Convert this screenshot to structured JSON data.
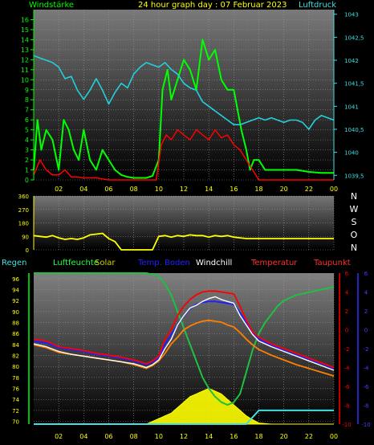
{
  "header": {
    "left_label": "Windstärke",
    "title": "24 hour graph day : 07 Februar 2023",
    "right_label": "Luftdruck"
  },
  "colors": {
    "wind_green": "#00ff00",
    "pressure_cyan": "#22d0dd",
    "pressure_axis": "#40e0e0",
    "red": "#ff0000",
    "yellow": "#ffff00",
    "white": "#ffffff",
    "blue": "#2020ff",
    "orange": "#ff8000",
    "grid": "#9a9a9a"
  },
  "chart_data": [
    {
      "id": "wind_pressure",
      "type": "line",
      "x_ticks": [
        "02",
        "04",
        "06",
        "08",
        "10",
        "12",
        "14",
        "16",
        "18",
        "20",
        "22",
        "00"
      ],
      "left_axis": {
        "label": "Windstärke",
        "ticks": [
          "0",
          "1",
          "2",
          "3",
          "4",
          "5",
          "6",
          "7",
          "8",
          "9",
          "10",
          "11",
          "12",
          "13",
          "14",
          "15",
          "16"
        ],
        "ylim": [
          0,
          17
        ]
      },
      "right_axis": {
        "label": "Luftdruck",
        "ticks": [
          "1039,5",
          "1040",
          "1040,5",
          "1041",
          "1041,5",
          "1042",
          "1042,5",
          "1043"
        ],
        "ylim": [
          1039.4,
          1043.1
        ]
      },
      "series": [
        {
          "axis": "left",
          "color": "#00ff00",
          "x": [
            0,
            0.3,
            0.6,
            1,
            1.5,
            2,
            2.4,
            2.8,
            3.2,
            3.6,
            4,
            4.5,
            5,
            5.5,
            6,
            6.5,
            7,
            7.5,
            8,
            8.5,
            9,
            9.5,
            10,
            10.3,
            10.7,
            11,
            11.5,
            12,
            12.5,
            13,
            13.5,
            14,
            14.5,
            15,
            15.5,
            16,
            16.3,
            16.6,
            17,
            17.3,
            17.6,
            18,
            18.5,
            19,
            20,
            21,
            22,
            23,
            24
          ],
          "y": [
            1,
            6,
            3,
            5,
            4,
            1,
            6,
            5,
            3,
            2,
            5,
            2,
            1,
            3,
            2,
            1,
            0.5,
            0.3,
            0.2,
            0.2,
            0.2,
            0.4,
            2,
            9,
            11,
            8,
            10,
            12,
            11,
            9,
            14,
            12,
            13,
            10,
            9,
            9,
            7,
            5,
            3,
            1,
            2,
            2,
            1,
            1,
            1,
            1,
            0.8,
            0.7,
            0.7
          ]
        },
        {
          "axis": "left",
          "color": "#ff0000",
          "x": [
            0,
            0.5,
            1,
            1.5,
            2,
            2.5,
            3,
            3.5,
            4,
            5,
            6,
            7,
            8,
            9,
            9.8,
            10.2,
            10.6,
            11,
            11.5,
            12,
            12.5,
            13,
            13.5,
            14,
            14.5,
            15,
            15.5,
            16,
            16.5,
            17,
            17.5,
            18,
            20,
            22,
            24
          ],
          "y": [
            0.5,
            2,
            1,
            0.5,
            0.5,
            1,
            0.3,
            0.3,
            0.2,
            0.2,
            0,
            0,
            0,
            0,
            0,
            3.5,
            4.5,
            4,
            5,
            4.5,
            4,
            5,
            4.5,
            4,
            5,
            4.2,
            4.5,
            3.5,
            3,
            2,
            1,
            0,
            0,
            0,
            0
          ]
        },
        {
          "axis": "right",
          "color": "#22d0dd",
          "x": [
            0,
            0.5,
            1,
            1.5,
            2,
            2.5,
            3,
            3.5,
            4,
            4.5,
            5,
            5.5,
            6,
            6.5,
            7,
            7.5,
            8,
            8.5,
            9,
            9.5,
            10,
            10.5,
            11,
            11.5,
            12,
            12.5,
            13,
            13.5,
            14,
            14.5,
            15,
            15.5,
            16,
            16.5,
            17,
            17.5,
            18,
            18.5,
            19,
            19.5,
            20,
            20.5,
            21,
            21.5,
            22,
            22.5,
            23,
            23.5,
            24
          ],
          "y": [
            1042.1,
            1042.05,
            1042.0,
            1041.95,
            1041.85,
            1041.6,
            1041.65,
            1041.35,
            1041.15,
            1041.35,
            1041.6,
            1041.35,
            1041.05,
            1041.3,
            1041.5,
            1041.4,
            1041.7,
            1041.85,
            1041.95,
            1041.9,
            1041.85,
            1041.95,
            1041.8,
            1041.7,
            1041.5,
            1041.4,
            1041.35,
            1041.1,
            1041.0,
            1040.9,
            1040.8,
            1040.7,
            1040.6,
            1040.6,
            1040.65,
            1040.7,
            1040.75,
            1040.7,
            1040.75,
            1040.7,
            1040.65,
            1040.7,
            1040.7,
            1040.65,
            1040.5,
            1040.7,
            1040.8,
            1040.75,
            1040.7
          ]
        }
      ]
    },
    {
      "id": "wind_direction",
      "type": "line",
      "x_ticks": [
        "02",
        "04",
        "06",
        "08",
        "10",
        "12",
        "14",
        "16",
        "18",
        "20",
        "22",
        "00"
      ],
      "left_axis": {
        "ticks": [
          "0",
          "90",
          "180",
          "270",
          "360"
        ],
        "ylim": [
          0,
          360
        ]
      },
      "right_axis": {
        "ticks": [
          "N",
          "W",
          "S",
          "O",
          "N"
        ]
      },
      "series": [
        {
          "color": "#ffff00",
          "x": [
            0,
            0.5,
            1,
            1.5,
            2,
            2.5,
            3,
            3.5,
            4,
            4.5,
            5,
            5.5,
            6,
            6.5,
            7,
            8,
            9,
            9.5,
            10,
            10.5,
            11,
            11.5,
            12,
            12.5,
            13,
            13.5,
            14,
            14.5,
            15,
            15.5,
            16,
            16.5,
            17,
            18,
            20,
            22,
            24
          ],
          "y": [
            95,
            90,
            85,
            95,
            80,
            70,
            75,
            70,
            80,
            100,
            105,
            110,
            75,
            55,
            0,
            0,
            0,
            0,
            90,
            95,
            85,
            95,
            90,
            100,
            95,
            95,
            85,
            95,
            90,
            95,
            85,
            80,
            75,
            75,
            75,
            75,
            75
          ]
        }
      ]
    },
    {
      "id": "temperature",
      "type": "line",
      "x_ticks": [
        "02",
        "04",
        "06",
        "08",
        "10",
        "12",
        "14",
        "16",
        "18",
        "20",
        "22",
        "00"
      ],
      "legend": [
        "Regen",
        "Luftfeuchte",
        "Solar",
        "Temp. Boden",
        "Windchill",
        "Temperatur",
        "Taupunkt"
      ],
      "left_axis": {
        "ticks": [
          "70",
          "72",
          "74",
          "76",
          "78",
          "80",
          "82",
          "84",
          "86",
          "88",
          "90",
          "92",
          "94",
          "96"
        ],
        "ylim": [
          69.5,
          97
        ]
      },
      "right_axis": {
        "ticks": [
          "-10",
          "-8",
          "-6",
          "-4",
          "-2",
          "0",
          "2",
          "4",
          "6"
        ],
        "ylim": [
          -10,
          6
        ]
      },
      "series": [
        {
          "name": "Temperatur",
          "color": "#ff0000",
          "x": [
            0,
            1,
            2,
            3,
            4,
            5,
            6,
            7,
            8,
            8.5,
            9,
            9.5,
            10,
            10.5,
            11,
            11.5,
            12,
            12.5,
            13,
            13.5,
            14,
            14.5,
            15,
            15.5,
            16,
            16.5,
            17,
            17.5,
            18,
            19,
            20,
            21,
            22,
            23,
            24
          ],
          "y": [
            -1,
            -1.2,
            -1.8,
            -2,
            -2.2,
            -2.5,
            -2.7,
            -2.9,
            -3.2,
            -3.4,
            -3.6,
            -3.3,
            -2.8,
            -1,
            0,
            1.5,
            2.5,
            3.2,
            3.7,
            4,
            4.1,
            4.1,
            4.0,
            3.9,
            3.8,
            2.5,
            1,
            -0.2,
            -0.8,
            -1.5,
            -2,
            -2.5,
            -3,
            -3.5,
            -4
          ]
        },
        {
          "name": "Windchill",
          "color": "#ffffff",
          "x": [
            0,
            1,
            2,
            3,
            4,
            5,
            6,
            7,
            8,
            8.5,
            9,
            9.5,
            10,
            10.5,
            11,
            11.5,
            12,
            12.5,
            13,
            13.5,
            14,
            14.5,
            15,
            15.5,
            16,
            16.5,
            17,
            17.5,
            18,
            19,
            20,
            21,
            22,
            23,
            24
          ],
          "y": [
            -1.5,
            -1.8,
            -2.3,
            -2.6,
            -2.8,
            -3,
            -3.2,
            -3.4,
            -3.6,
            -3.8,
            -4,
            -3.7,
            -3.2,
            -2,
            -1,
            0.5,
            1.5,
            2.3,
            2.6,
            3,
            3.3,
            3.5,
            3.2,
            3,
            2.8,
            1.5,
            0.5,
            -0.5,
            -1.2,
            -1.8,
            -2.3,
            -2.8,
            -3.3,
            -3.8,
            -4.3
          ]
        },
        {
          "name": "Temp. Boden",
          "color": "#2020ff",
          "x": [
            0,
            1,
            2,
            3,
            4,
            5,
            6,
            7,
            8,
            8.5,
            9,
            9.5,
            10,
            10.5,
            11,
            11.5,
            12,
            12.5,
            13,
            13.5,
            14,
            14.5,
            15,
            15.5,
            16,
            16.5,
            17,
            17.5,
            18,
            19,
            20,
            21,
            22,
            23,
            24
          ],
          "y": [
            -1.2,
            -1.4,
            -1.9,
            -2.1,
            -2.3,
            -2.6,
            -2.8,
            -3,
            -3.3,
            -3.5,
            -3.7,
            -3.4,
            -3,
            -1.5,
            -0.5,
            0.5,
            1.5,
            2.2,
            2.7,
            2.9,
            3,
            3,
            2.9,
            2.8,
            2.7,
            1.8,
            0.7,
            -0.3,
            -1,
            -1.6,
            -2.2,
            -2.7,
            -3.1,
            -3.6,
            -4.1
          ]
        },
        {
          "name": "Taupunkt",
          "color": "#ff8000",
          "x": [
            0,
            1,
            2,
            3,
            4,
            5,
            6,
            7,
            8,
            8.5,
            9,
            9.5,
            10,
            10.5,
            11,
            11.5,
            12,
            12.5,
            13,
            13.5,
            14,
            14.5,
            15,
            15.5,
            16,
            16.5,
            17,
            17.5,
            18,
            19,
            20,
            21,
            22,
            23,
            24
          ],
          "y": [
            -1.6,
            -1.9,
            -2.4,
            -2.6,
            -2.8,
            -3,
            -3.2,
            -3.4,
            -3.7,
            -3.9,
            -4.1,
            -3.8,
            -3.3,
            -2.5,
            -1.5,
            -0.8,
            0,
            0.4,
            0.7,
            0.9,
            1,
            0.9,
            0.8,
            0.5,
            0.3,
            -0.3,
            -1,
            -1.6,
            -2.1,
            -2.7,
            -3.2,
            -3.7,
            -4.1,
            -4.5,
            -4.9
          ]
        },
        {
          "name": "Luftfeuchte",
          "color": "#20c040",
          "x": [
            0,
            1,
            2,
            3,
            4,
            5,
            6,
            7,
            8,
            9,
            10,
            10.5,
            11,
            11.5,
            12,
            12.5,
            13,
            13.5,
            14,
            14.5,
            15,
            15.5,
            16,
            16.5,
            17,
            17.5,
            18,
            18.5,
            19,
            19.5,
            20,
            20.5,
            21,
            22,
            23,
            24
          ],
          "y": [
            97,
            97,
            97,
            97,
            97,
            97,
            97,
            97,
            97,
            97,
            96.5,
            95,
            93,
            90,
            87,
            84,
            81,
            78,
            76,
            74.5,
            73.5,
            73,
            73.5,
            75,
            79,
            83,
            86,
            88,
            89.5,
            91,
            92,
            92.5,
            93,
            93.5,
            94,
            94.5
          ]
        },
        {
          "name": "Regen",
          "color": "#40e0e0",
          "x": [
            0,
            3,
            6,
            9,
            10,
            11,
            12,
            13,
            14,
            15,
            16,
            17,
            18,
            19,
            20,
            21,
            22,
            23,
            24
          ],
          "y": [
            69.5,
            69.5,
            69.5,
            69.5,
            69.5,
            69.5,
            69.5,
            69.5,
            69.5,
            69.5,
            69.5,
            69.5,
            72,
            72,
            72,
            72,
            72,
            72,
            72
          ]
        },
        {
          "name": "Solar",
          "color": "#ffff00",
          "x": [
            0,
            9,
            9.5,
            10,
            10.5,
            11,
            11.5,
            12,
            12.5,
            13,
            13.5,
            14,
            14.5,
            15,
            15.5,
            16,
            16.5,
            17,
            17.5,
            18,
            19,
            24
          ],
          "y": [
            69.5,
            69.5,
            70,
            70.5,
            71,
            71.5,
            72.5,
            73.5,
            74.5,
            75,
            75.5,
            76,
            75.5,
            75,
            74,
            73,
            72,
            71,
            70.3,
            69.7,
            69.5,
            69.5
          ]
        }
      ]
    }
  ],
  "dir_labels": [
    "N",
    "W",
    "S",
    "O",
    "N"
  ]
}
